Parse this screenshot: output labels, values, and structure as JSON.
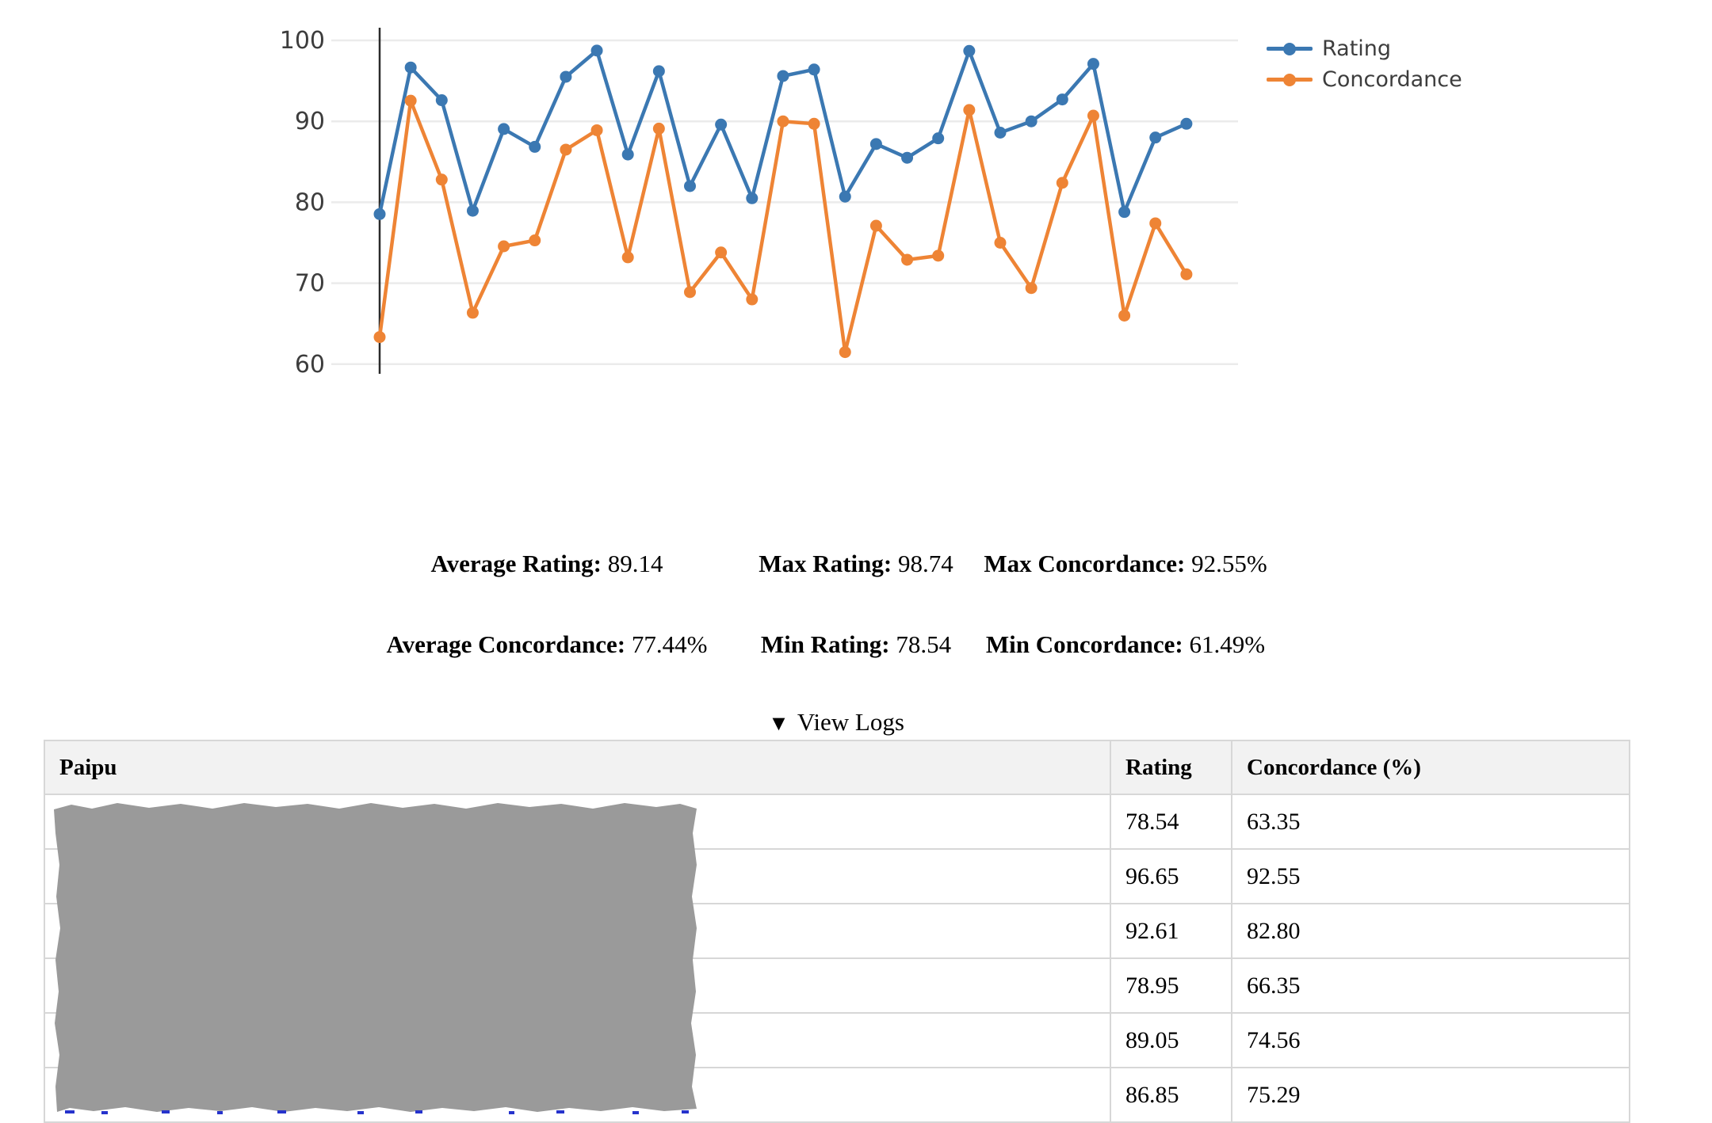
{
  "chart_data": {
    "type": "line",
    "x": [
      1,
      2,
      3,
      4,
      5,
      6,
      7,
      8,
      9,
      10,
      11,
      12,
      13,
      14,
      15,
      16,
      17,
      18,
      19,
      20,
      21,
      22,
      23,
      24,
      25,
      26,
      27
    ],
    "series": [
      {
        "name": "Rating",
        "color": "#3b78b2",
        "values": [
          78.54,
          96.65,
          92.61,
          78.95,
          89.05,
          86.85,
          95.5,
          98.74,
          85.9,
          96.2,
          82.0,
          89.6,
          80.5,
          95.6,
          96.4,
          80.7,
          87.2,
          85.5,
          87.9,
          98.7,
          88.6,
          90.0,
          92.7,
          97.1,
          78.8,
          88.0,
          89.7
        ]
      },
      {
        "name": "Concordance",
        "color": "#ee8435",
        "values": [
          63.35,
          92.55,
          82.8,
          66.35,
          74.56,
          75.29,
          86.5,
          88.9,
          73.2,
          89.1,
          68.9,
          73.8,
          68.0,
          90.0,
          89.7,
          61.49,
          77.1,
          72.9,
          73.4,
          91.4,
          75.0,
          69.4,
          82.4,
          90.7,
          66.0,
          77.4,
          71.1
        ]
      }
    ],
    "title": "",
    "xlabel": "",
    "ylabel": "",
    "ylim": [
      60,
      100
    ],
    "yticks": [
      100,
      90,
      80,
      70,
      60
    ],
    "grid": true,
    "legend_position": "top-right"
  },
  "stats": {
    "row1": [
      {
        "label": "Average Rating:",
        "value": "89.14"
      },
      {
        "label": "Max Rating:",
        "value": "98.74"
      },
      {
        "label": "Max Concordance:",
        "value": "92.55%"
      }
    ],
    "row2": [
      {
        "label": "Average Concordance:",
        "value": "77.44%"
      },
      {
        "label": "Min Rating:",
        "value": "78.54"
      },
      {
        "label": "Min Concordance:",
        "value": "61.49%"
      }
    ]
  },
  "logs_toggle": {
    "icon": "▼",
    "label": "View Logs"
  },
  "table": {
    "columns": [
      "Paipu",
      "Rating",
      "Concordance (%)"
    ],
    "rows": [
      {
        "rating": "78.54",
        "concordance": "63.35"
      },
      {
        "rating": "96.65",
        "concordance": "92.55"
      },
      {
        "rating": "92.61",
        "concordance": "82.80"
      },
      {
        "rating": "78.95",
        "concordance": "66.35"
      },
      {
        "rating": "89.05",
        "concordance": "74.56"
      },
      {
        "rating": "86.85",
        "concordance": "75.29"
      }
    ],
    "paipu_redacted": true
  },
  "colors": {
    "rating_blue": "#3b78b2",
    "concordance_orange": "#ee8435",
    "gridline": "#ebebeb",
    "axis_spine": "#2b2b2b",
    "tick_label": "#3d3d3d",
    "table_border": "#d7d7d7",
    "header_bg": "#f2f2f2",
    "redaction_gray": "#9a9a9a"
  }
}
